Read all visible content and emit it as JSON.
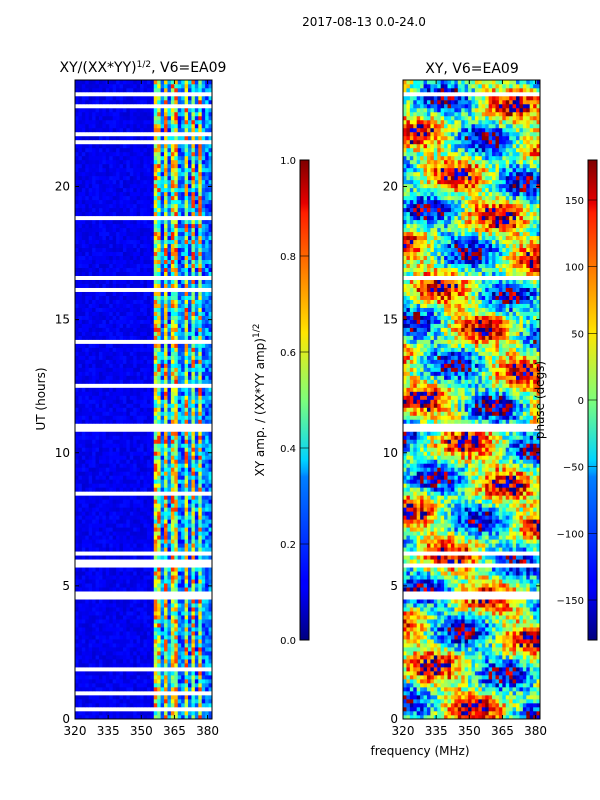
{
  "suptitle": "2017-08-13 0.0-24.0",
  "chart_data": [
    {
      "type": "heatmap",
      "title": "XY/(XX*YY)^1/2, V6=EA09",
      "xlabel": "",
      "ylabel": "UT (hours)",
      "xlim": [
        320,
        382
      ],
      "ylim": [
        0,
        24
      ],
      "xticks": [
        "320",
        "335",
        "350",
        "365",
        "380"
      ],
      "xtick_values": [
        320,
        335,
        350,
        365,
        380
      ],
      "yticks": [
        "0",
        "5",
        "10",
        "15",
        "20"
      ],
      "ytick_values": [
        0,
        5,
        10,
        15,
        20
      ],
      "colorbar": {
        "label": "XY amp. / (XX*YY amp)^1/2",
        "range": [
          0.0,
          1.0
        ],
        "ticks": [
          "0.0",
          "0.2",
          "0.4",
          "0.6",
          "0.8",
          "1.0"
        ],
        "tick_values": [
          0.0,
          0.2,
          0.4,
          0.6,
          0.8,
          1.0
        ],
        "colormap": "jet"
      },
      "flagged_intervals": [
        [
          0.3,
          0.4
        ],
        [
          0.55,
          0.65
        ],
        [
          0.9,
          1.0
        ],
        [
          1.85,
          1.95
        ],
        [
          2.35,
          2.4
        ],
        [
          3.4,
          3.45
        ],
        [
          3.7,
          3.75
        ],
        [
          4.3,
          4.35
        ],
        [
          4.5,
          4.8
        ],
        [
          5.05,
          5.1
        ],
        [
          5.55,
          5.6
        ],
        [
          5.75,
          5.95
        ],
        [
          6.2,
          6.25
        ],
        [
          6.6,
          6.65
        ],
        [
          7.0,
          7.05
        ],
        [
          7.35,
          7.4
        ],
        [
          8.45,
          8.5
        ],
        [
          9.3,
          9.35
        ],
        [
          10.05,
          10.1
        ],
        [
          10.45,
          10.55
        ],
        [
          10.75,
          11.15
        ],
        [
          12.5,
          12.55
        ],
        [
          12.85,
          12.9
        ],
        [
          13.3,
          13.35
        ],
        [
          13.65,
          13.7
        ],
        [
          14.15,
          14.2
        ],
        [
          14.55,
          14.6
        ],
        [
          15.1,
          15.2
        ],
        [
          15.55,
          15.6
        ],
        [
          15.85,
          15.9
        ],
        [
          16.1,
          16.15
        ],
        [
          16.55,
          16.65
        ],
        [
          16.75,
          16.8
        ],
        [
          16.9,
          16.95
        ],
        [
          17.05,
          17.1
        ],
        [
          17.5,
          17.55
        ],
        [
          17.8,
          17.85
        ],
        [
          18.3,
          18.35
        ],
        [
          18.8,
          18.85
        ],
        [
          19.0,
          19.05
        ],
        [
          19.95,
          20.0
        ],
        [
          20.5,
          20.55
        ],
        [
          21.3,
          21.35
        ],
        [
          21.65,
          21.7
        ],
        [
          21.95,
          22.0
        ],
        [
          22.15,
          22.2
        ],
        [
          22.45,
          22.5
        ],
        [
          22.95,
          23.05
        ],
        [
          23.35,
          23.55
        ],
        [
          23.8,
          23.85
        ]
      ],
      "bright_channel_bands_mhz": [
        [
          356,
          358
        ],
        [
          360,
          361.5
        ],
        [
          364,
          366
        ],
        [
          369,
          371
        ],
        [
          372.5,
          374
        ],
        [
          376,
          377.5
        ]
      ]
    },
    {
      "type": "heatmap",
      "title": "XY, V6=EA09",
      "xlabel": "frequency (MHz)",
      "ylabel": "",
      "xlim": [
        320,
        382
      ],
      "ylim": [
        0,
        24
      ],
      "xticks": [
        "320",
        "335",
        "350",
        "365",
        "380"
      ],
      "xtick_values": [
        320,
        335,
        350,
        365,
        380
      ],
      "yticks": [
        "0",
        "5",
        "10",
        "15",
        "20"
      ],
      "ytick_values": [
        0,
        5,
        10,
        15,
        20
      ],
      "colorbar": {
        "label": "phase (degs)",
        "range": [
          -180,
          180
        ],
        "ticks": [
          "−150",
          "−100",
          "−50",
          "0",
          "50",
          "100",
          "150"
        ],
        "tick_values": [
          -150,
          -100,
          -50,
          0,
          50,
          100,
          150
        ],
        "colormap": "jet"
      },
      "flagged_intervals": [
        [
          0.3,
          0.35
        ],
        [
          0.9,
          0.95
        ],
        [
          2.35,
          2.4
        ],
        [
          4.5,
          4.8
        ],
        [
          5.75,
          5.9
        ],
        [
          6.2,
          6.25
        ],
        [
          10.75,
          11.15
        ],
        [
          15.1,
          15.15
        ],
        [
          16.55,
          16.6
        ],
        [
          16.9,
          16.95
        ],
        [
          17.5,
          17.55
        ],
        [
          22.95,
          23.0
        ],
        [
          23.35,
          23.5
        ]
      ]
    }
  ]
}
